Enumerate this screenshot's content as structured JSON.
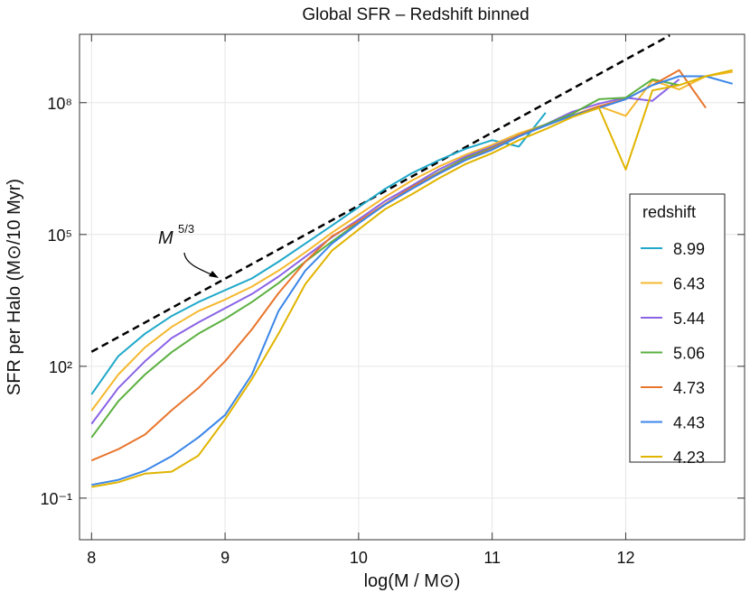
{
  "chart_data": {
    "type": "line",
    "title": "Global SFR – Redshift binned",
    "x_label": "log(M / M⊙)",
    "y_label": "SFR per Halo (M⊙/10 Myr)",
    "yscale": "log",
    "grid": true,
    "legend_position": "right",
    "legend_title": "redshift",
    "xlim": [
      7.91,
      12.89
    ],
    "ylim": [
      0.0113,
      3600000000.0
    ],
    "xticks": [
      8,
      9,
      10,
      11,
      12
    ],
    "yticks": [
      {
        "value": 0.1,
        "label": "10⁻¹"
      },
      {
        "value": 100,
        "label": "10²"
      },
      {
        "value": 100000,
        "label": "10⁵"
      },
      {
        "value": 100000000,
        "label": "10⁸"
      }
    ],
    "x": [
      8.0,
      8.2,
      8.4,
      8.6,
      8.8,
      9.0,
      9.2,
      9.4,
      9.6,
      9.8,
      10.0,
      10.2,
      10.4,
      10.6,
      10.8,
      11.0,
      11.2,
      11.4,
      11.6,
      11.8,
      12.0,
      12.2,
      12.4,
      12.6,
      12.8
    ],
    "series": [
      {
        "name": "8.99",
        "color": "#1fa8c9",
        "values": [
          23,
          170,
          550,
          1400,
          2900,
          5400,
          10000,
          24000,
          62000,
          160000,
          420000,
          1100000,
          2500000,
          4900000,
          8900000,
          14000000,
          10000000,
          59000000,
          null,
          null,
          null,
          null,
          null,
          null,
          null
        ]
      },
      {
        "name": "6.43",
        "color": "#f5b82e",
        "values": [
          9.8,
          65,
          270,
          790,
          1800,
          3300,
          6500,
          15000,
          39000,
          110000,
          280000,
          720000,
          1700000,
          3500000,
          6500000,
          11000000,
          20000000,
          32000000,
          51000000,
          83000000,
          50000000,
          320000000,
          200000000,
          400000000,
          500000000
        ]
      },
      {
        "name": "5.44",
        "color": "#8a63e6",
        "values": [
          4.9,
          32,
          130,
          440,
          1000,
          2100,
          4400,
          11000,
          31000,
          87000,
          220000,
          580000,
          1300000,
          3000000,
          5900000,
          10000000,
          18000000,
          32000000,
          62000000,
          95000000,
          130000000,
          110000000,
          340000000,
          null,
          null
        ]
      },
      {
        "name": "5.06",
        "color": "#5bb040",
        "values": [
          2.4,
          16,
          65,
          210,
          550,
          1200,
          2900,
          7800,
          24000,
          69000,
          190000,
          480000,
          1200000,
          2600000,
          5400000,
          9300000,
          18000000,
          32000000,
          56000000,
          120000000,
          130000000,
          340000000,
          250000000,
          null,
          null
        ]
      },
      {
        "name": "4.73",
        "color": "#e8752c",
        "values": [
          0.72,
          1.3,
          2.8,
          10,
          32,
          130,
          690,
          4600,
          24000,
          91000,
          200000,
          500000,
          1200000,
          2500000,
          5000000,
          8900000,
          18000000,
          30000000,
          51000000,
          83000000,
          120000000,
          250000000,
          550000000,
          76000000,
          null
        ]
      },
      {
        "name": "4.43",
        "color": "#3b86e8",
        "values": [
          0.2,
          0.26,
          0.42,
          0.9,
          2.4,
          7.8,
          65,
          1800,
          15000,
          62000,
          180000,
          480000,
          1100000,
          2400000,
          4900000,
          8500000,
          17000000,
          30000000,
          51000000,
          76000000,
          120000000,
          250000000,
          400000000,
          400000000,
          270000000
        ]
      },
      {
        "name": "4.23",
        "color": "#e0b400",
        "values": [
          0.18,
          0.23,
          0.36,
          0.4,
          0.93,
          6.2,
          51,
          550,
          7400,
          43000,
          130000,
          380000,
          830000,
          1900000,
          4000000,
          7100000,
          14000000,
          25000000,
          47000000,
          76000000,
          3000000,
          190000000,
          250000000,
          400000000,
          550000000
        ]
      }
    ],
    "reference_line": {
      "x": [
        8.0,
        12.33
      ],
      "values": [
        214,
        3400000000
      ],
      "color": "#000000",
      "label": "M",
      "label_superscript": "5/3"
    }
  }
}
